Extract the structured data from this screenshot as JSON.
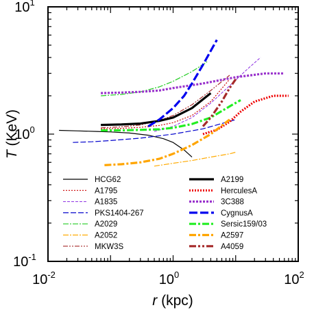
{
  "chart_data": {
    "type": "line",
    "xlabel_var": "r",
    "xlabel_unit": " (kpc)",
    "ylabel_var": "T",
    "ylabel_unit": " (KeV)",
    "x_scale": "log",
    "y_scale": "log",
    "xlim": [
      0.01,
      100
    ],
    "ylim": [
      0.1,
      10
    ],
    "grid": false,
    "legend_placement": "lower-center",
    "x_ticks": [
      {
        "base": "10",
        "exp": "-2",
        "value": 0.01
      },
      {
        "base": "10",
        "exp": "0",
        "value": 1
      },
      {
        "base": "10",
        "exp": "2",
        "value": 100
      }
    ],
    "y_ticks": [
      {
        "base": "10",
        "exp": "-1",
        "value": 0.1
      },
      {
        "base": "10",
        "exp": "0",
        "value": 1
      },
      {
        "base": "10",
        "exp": "1",
        "value": 10
      }
    ],
    "series": [
      {
        "name": "HCG62",
        "color": "#000000",
        "dash": "solid",
        "width": 1.2,
        "x": [
          0.015,
          0.03,
          0.06,
          0.1,
          0.2,
          0.4,
          0.7,
          1.0,
          1.5,
          2.0
        ],
        "y": [
          1.07,
          1.06,
          1.05,
          1.04,
          1.02,
          0.98,
          0.92,
          0.86,
          0.75,
          0.66
        ]
      },
      {
        "name": "A1795",
        "color": "#cc0000",
        "dash": "2,2",
        "width": 1.2,
        "x": [
          0.07,
          0.15,
          0.3,
          0.6,
          1.0,
          2.0,
          4.0,
          8.0
        ],
        "y": [
          1.1,
          1.11,
          1.13,
          1.17,
          1.23,
          1.4,
          1.8,
          2.7
        ]
      },
      {
        "name": "A1835",
        "color": "#8a2be2",
        "dash": "4,2",
        "width": 1.0,
        "x": [
          0.5,
          1.0,
          2.0,
          4.0,
          8.0,
          16.0,
          25.0
        ],
        "y": [
          1.05,
          1.15,
          1.35,
          1.75,
          2.4,
          3.3,
          4.0
        ]
      },
      {
        "name": "PKS1404-267",
        "color": "#0000cc",
        "dash": "8,3",
        "width": 1.2,
        "x": [
          0.025,
          0.05,
          0.1,
          0.3,
          1.0,
          3.0,
          10.0
        ],
        "y": [
          0.86,
          0.87,
          0.89,
          0.93,
          1.0,
          1.1,
          1.3
        ]
      },
      {
        "name": "A2029",
        "color": "#22cc22",
        "dash": "8,2,2,2",
        "width": 1.2,
        "x": [
          0.07,
          0.15,
          0.3,
          0.6,
          1.0,
          2.0,
          3.5
        ],
        "y": [
          2.0,
          2.05,
          2.15,
          2.35,
          2.6,
          3.1,
          3.7
        ]
      },
      {
        "name": "A2052",
        "color": "#ffaa00",
        "dash": "8,2,2,2",
        "width": 1.2,
        "x": [
          0.5,
          1.0,
          2.0,
          4.0,
          8.0,
          10.0
        ],
        "y": [
          0.56,
          0.59,
          0.62,
          0.66,
          0.7,
          0.72
        ]
      },
      {
        "name": "MKW3S",
        "color": "#a52a2a",
        "dash": "7,2,2,2,2,2",
        "width": 1.2,
        "x": [
          0.07,
          0.15,
          0.3,
          0.6,
          1.0,
          2.0,
          4.0,
          8.0
        ],
        "y": [
          1.12,
          1.14,
          1.18,
          1.28,
          1.4,
          1.7,
          2.2,
          2.9
        ]
      },
      {
        "name": "A2199",
        "color": "#000000",
        "dash": "solid",
        "width": 3.2,
        "x": [
          0.07,
          0.15,
          0.3,
          0.6,
          1.0,
          2.0,
          4.0
        ],
        "y": [
          1.18,
          1.19,
          1.21,
          1.27,
          1.35,
          1.6,
          2.1
        ]
      },
      {
        "name": "HerculesA",
        "color": "#ee0000",
        "dash": "2,2",
        "width": 3.2,
        "x": [
          3.0,
          5.0,
          8.0,
          12.0,
          20.0,
          40.0,
          70.0
        ],
        "y": [
          1.0,
          1.08,
          1.25,
          1.5,
          1.8,
          2.0,
          2.0
        ]
      },
      {
        "name": "3C388",
        "color": "#9932cc",
        "dash": "3,2",
        "width": 3.2,
        "x": [
          0.07,
          0.15,
          0.3,
          0.6,
          1.0,
          3.0,
          10.0,
          30.0,
          60.0
        ],
        "y": [
          2.1,
          2.12,
          2.15,
          2.2,
          2.3,
          2.5,
          2.8,
          3.0,
          3.0
        ]
      },
      {
        "name": "CygnusA",
        "color": "#0000ee",
        "dash": "12,4",
        "width": 3.2,
        "x": [
          0.4,
          0.6,
          1.0,
          1.5,
          2.0,
          3.0,
          5.0
        ],
        "y": [
          1.15,
          1.3,
          1.6,
          2.0,
          2.5,
          3.5,
          5.5
        ]
      },
      {
        "name": "Sersic159/03",
        "color": "#22ee22",
        "dash": "10,3,3,3",
        "width": 3.2,
        "x": [
          0.07,
          0.15,
          0.3,
          0.6,
          1.0,
          2.0,
          4.0,
          8.0,
          12.0
        ],
        "y": [
          1.07,
          1.07,
          1.08,
          1.09,
          1.12,
          1.2,
          1.35,
          1.65,
          1.85
        ]
      },
      {
        "name": "A2597",
        "color": "#ffa500",
        "dash": "10,3,3,3",
        "width": 3.2,
        "x": [
          0.08,
          0.15,
          0.3,
          0.6,
          1.0,
          2.0,
          4.0,
          8.0
        ],
        "y": [
          0.57,
          0.58,
          0.6,
          0.64,
          0.7,
          0.82,
          1.0,
          1.3
        ]
      },
      {
        "name": "A4059",
        "color": "#a52a2a",
        "dash": "10,3,3,3,3,3",
        "width": 3.2,
        "x": [
          3.0,
          4.0,
          6.0,
          8.0,
          10.0
        ],
        "y": [
          1.15,
          1.35,
          1.8,
          2.3,
          2.7
        ]
      }
    ]
  }
}
